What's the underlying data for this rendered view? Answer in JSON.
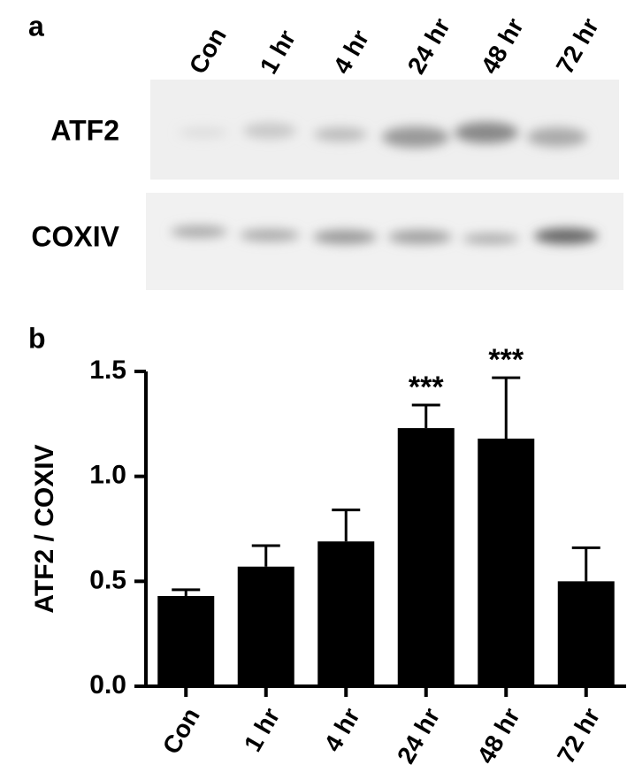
{
  "panel_a": {
    "label": "a",
    "lanes": [
      "Con",
      "1 hr",
      "4 hr",
      "24 hr",
      "48 hr",
      "72 hr"
    ],
    "rows": [
      "ATF2",
      "COXIV"
    ]
  },
  "chart_data": {
    "type": "bar",
    "label": "b",
    "ylabel": "ATF2 / COXIV",
    "categories": [
      "Con",
      "1 hr",
      "4 hr",
      "24 hr",
      "48 hr",
      "72 hr"
    ],
    "values": [
      0.43,
      0.57,
      0.69,
      1.23,
      1.18,
      0.5
    ],
    "errors": [
      0.03,
      0.1,
      0.15,
      0.11,
      0.29,
      0.16
    ],
    "significance": [
      null,
      null,
      null,
      "***",
      "***",
      null
    ],
    "color": "#000000",
    "ylim": [
      0,
      1.5
    ],
    "yticks": [
      {
        "value": 0,
        "label": "0.0"
      },
      0.5,
      {
        "value": 1,
        "label": "1.0"
      },
      1.5
    ]
  }
}
